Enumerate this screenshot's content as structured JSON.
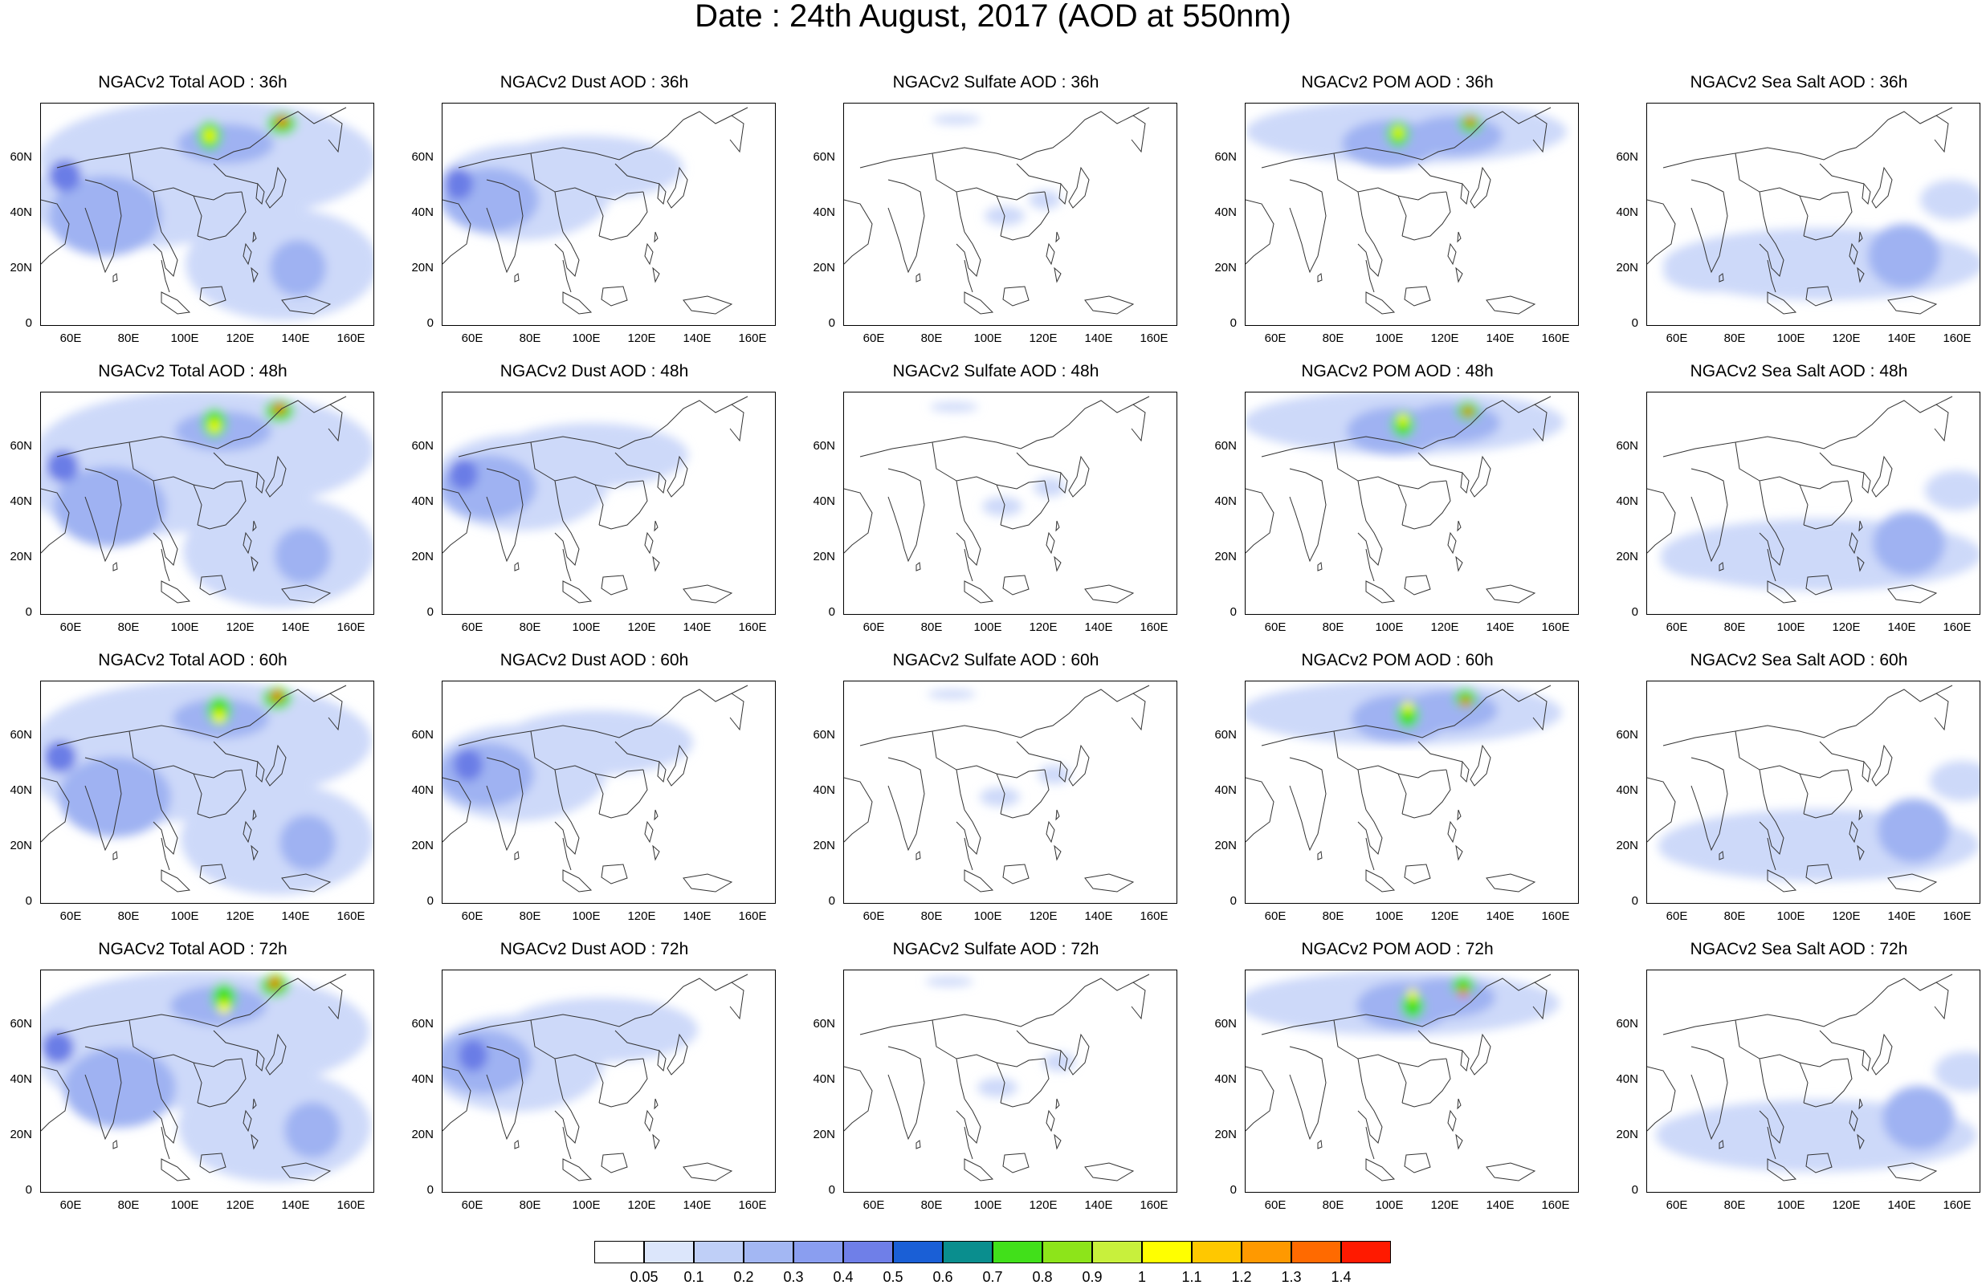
{
  "title": "Date : 24th August, 2017 (AOD at 550nm)",
  "x_ticks": [
    "60E",
    "80E",
    "100E",
    "120E",
    "140E",
    "160E"
  ],
  "y_ticks": [
    "60N",
    "40N",
    "20N",
    "0"
  ],
  "rows": [
    {
      "panels": [
        "NGACv2 Total AOD : 36h",
        "NGACv2 Dust AOD : 36h",
        "NGACv2 Sulfate AOD : 36h",
        "NGACv2 POM AOD : 36h",
        "NGACv2 Sea Salt AOD : 36h"
      ]
    },
    {
      "panels": [
        "NGACv2 Total AOD : 48h",
        "NGACv2 Dust AOD : 48h",
        "NGACv2 Sulfate AOD : 48h",
        "NGACv2 POM AOD : 48h",
        "NGACv2 Sea Salt AOD : 48h"
      ]
    },
    {
      "panels": [
        "NGACv2 Total AOD : 60h",
        "NGACv2 Dust AOD : 60h",
        "NGACv2 Sulfate AOD : 60h",
        "NGACv2 POM AOD : 60h",
        "NGACv2 Sea Salt AOD : 60h"
      ]
    },
    {
      "panels": [
        "NGACv2 Total AOD : 72h",
        "NGACv2 Dust AOD : 72h",
        "NGACv2 Sulfate AOD : 72h",
        "NGACv2 POM AOD : 72h",
        "NGACv2 Sea Salt  AOD : 72h"
      ]
    }
  ],
  "colorbar": {
    "labels": [
      "0.05",
      "0.1",
      "0.2",
      "0.3",
      "0.4",
      "0.5",
      "0.6",
      "0.7",
      "0.8",
      "0.9",
      "1",
      "1.1",
      "1.2",
      "1.3",
      "1.4"
    ],
    "colors": [
      "#ffffff",
      "#dce6fb",
      "#bfcff7",
      "#a3b7f3",
      "#8a9ef0",
      "#6f7fe8",
      "#1a5fd6",
      "#0a8e8e",
      "#41e01a",
      "#8de41a",
      "#c8f03c",
      "#ffff00",
      "#ffc800",
      "#ff9900",
      "#ff6a00",
      "#ff1a00"
    ]
  },
  "legend_colors": {
    "low": "#cdd9f9",
    "mid": "#9fb2f2",
    "high": "#6b7de6",
    "peak_green": "#41e01a",
    "peak_yellow": "#ffff00",
    "peak_red": "#ff1a00"
  }
}
